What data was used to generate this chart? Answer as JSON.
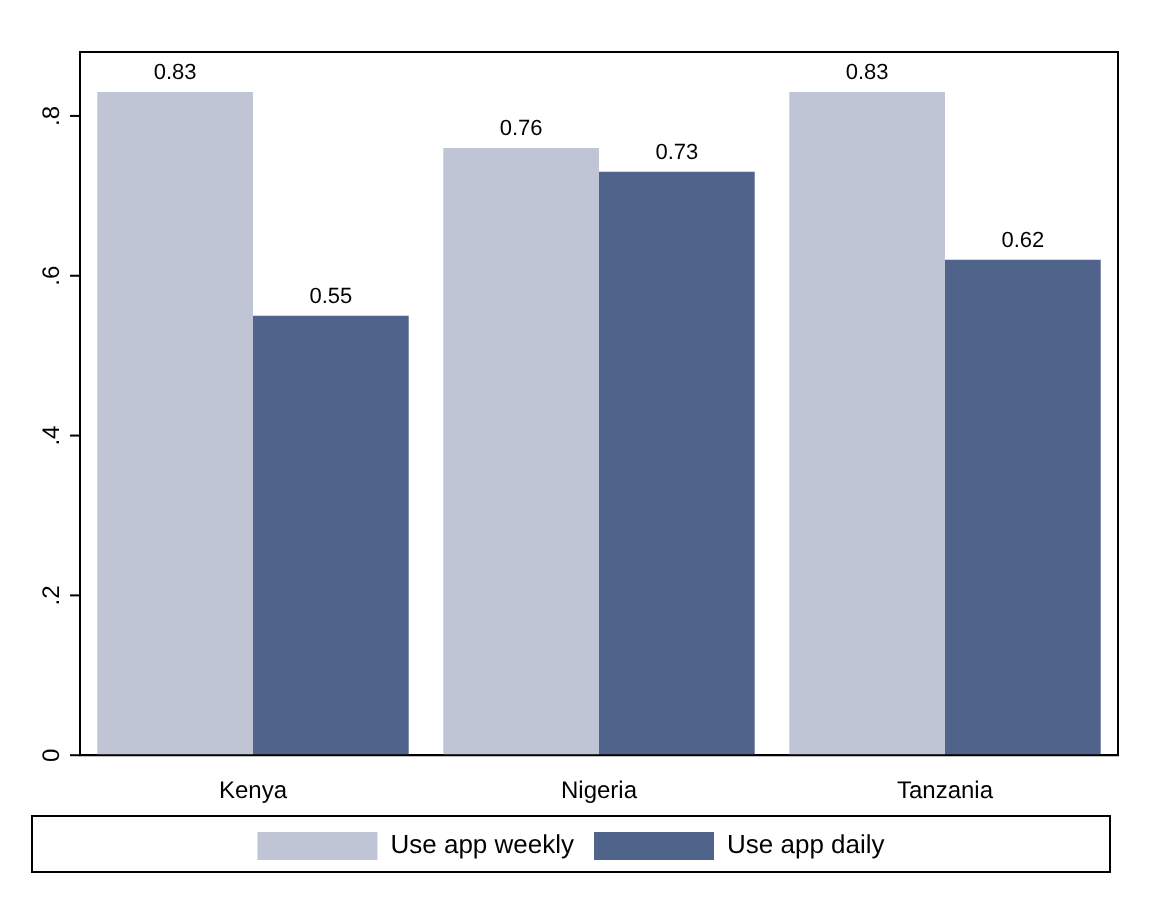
{
  "chart_data": {
    "type": "bar",
    "categories": [
      "Kenya",
      "Nigeria",
      "Tanzania"
    ],
    "series": [
      {
        "name": "Use app weekly",
        "color": "#c0c5d6",
        "values": [
          0.83,
          0.76,
          0.83
        ]
      },
      {
        "name": "Use app daily",
        "color": "#50648b",
        "values": [
          0.55,
          0.73,
          0.62
        ]
      }
    ],
    "value_labels": [
      [
        "0.83",
        "0.76",
        "0.83"
      ],
      [
        "0.55",
        "0.73",
        "0.62"
      ]
    ],
    "ylim": [
      0,
      0.88
    ],
    "yticks": [
      0,
      {
        "value": 0.2,
        "label": ".2"
      },
      {
        "value": 0.4,
        "label": ".4"
      },
      {
        "value": 0.6,
        "label": ".6"
      },
      {
        "value": 0.8,
        "label": ".8"
      }
    ],
    "grid": false,
    "legend": "bottom"
  }
}
